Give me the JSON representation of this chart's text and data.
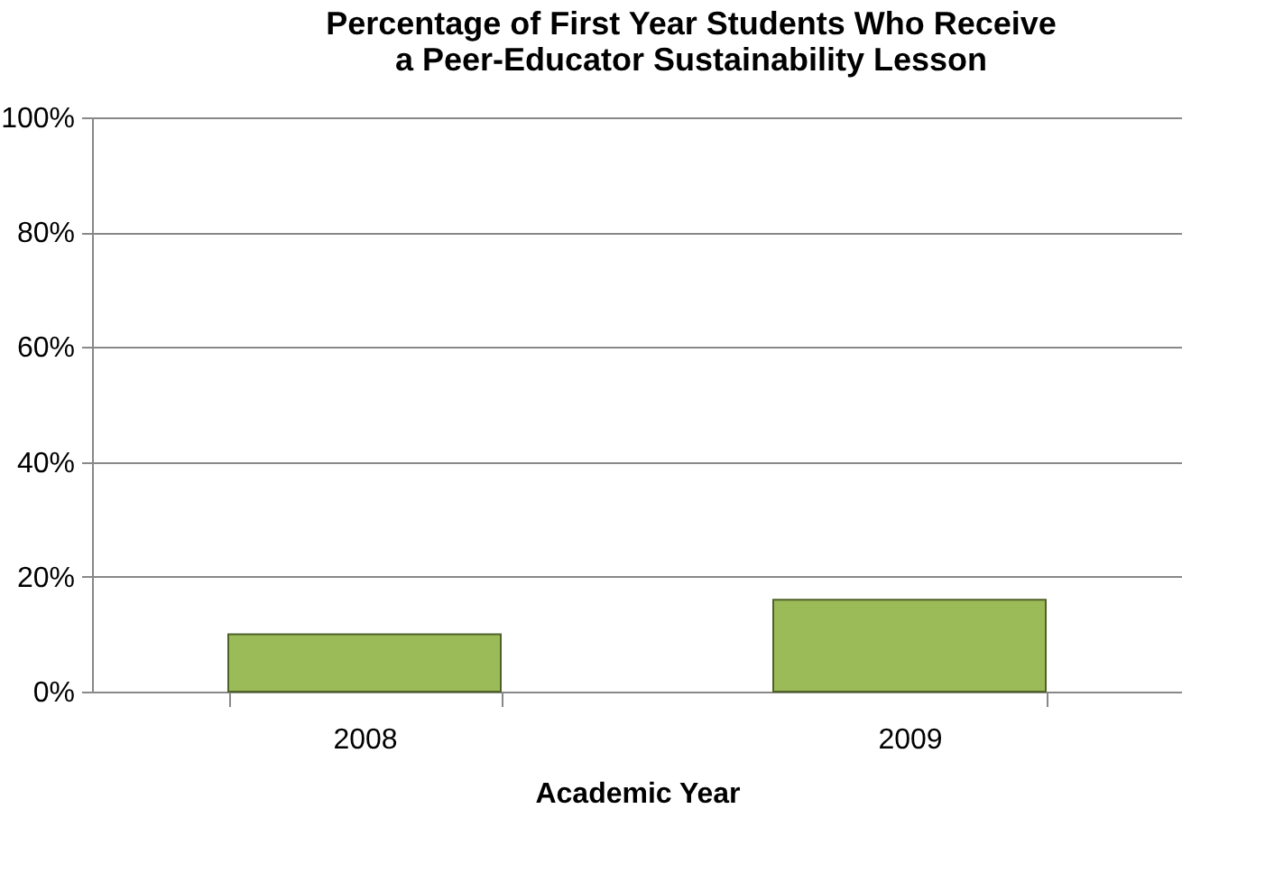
{
  "chart_data": {
    "type": "bar",
    "title": [
      "Percentage of First Year Students Who Receive",
      "a Peer-Educator Sustainability Lesson"
    ],
    "xlabel": "Academic Year",
    "categories": [
      "2008",
      "2009"
    ],
    "series": [
      {
        "color": "#9bbb59",
        "values": [
          10,
          16
        ]
      }
    ],
    "ylim": [
      0,
      100
    ],
    "yticks": [
      {
        "value": 0,
        "label": "0%"
      },
      {
        "value": 20,
        "label": "20%"
      },
      {
        "value": 40,
        "label": "40%"
      },
      {
        "value": 60,
        "label": "60%"
      },
      {
        "value": 80,
        "label": "80%"
      },
      {
        "value": 100,
        "label": "100%"
      }
    ],
    "grid": "y"
  }
}
